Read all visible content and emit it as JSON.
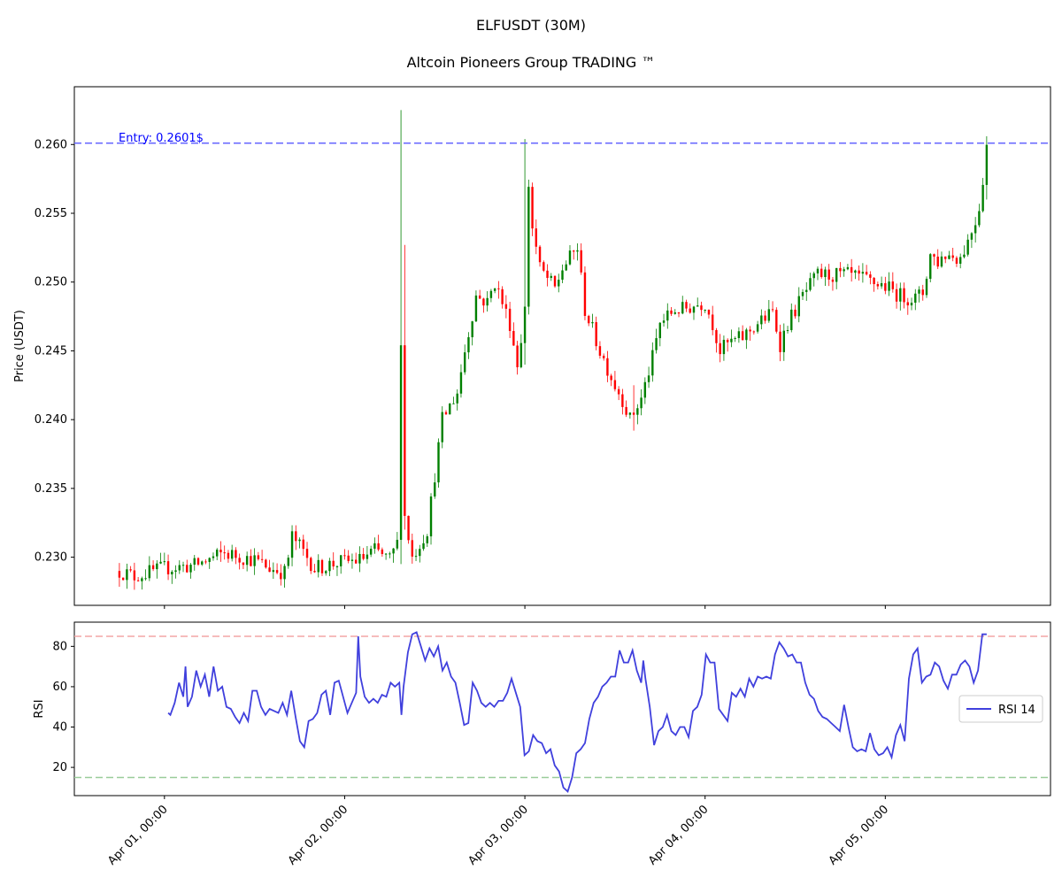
{
  "chart_data": {
    "type": "candlestick",
    "title": "ELFUSDT (30M)",
    "subtitle": "Altcoin Pioneers Group TRADING ™",
    "colors": {
      "up": "#008000",
      "down": "#ff0000",
      "entry": "#6666ff",
      "rsi": "#4040dd",
      "overbought": "#f4a6a6",
      "oversold": "#99cc99",
      "entry_text": "#0000ff"
    },
    "x_axis": {
      "ticks": [
        "Apr 01, 00:00",
        "Apr 02, 00:00",
        "Apr 03, 00:00",
        "Apr 04, 00:00",
        "Apr 05, 00:00"
      ],
      "tick_hours": [
        0,
        24,
        48,
        72,
        96
      ],
      "range_hours": [
        -12,
        118
      ]
    },
    "price_panel": {
      "ylabel": "Price (USDT)",
      "ylim": [
        0.2265,
        0.2642
      ],
      "yticks": [
        0.23,
        0.235,
        0.24,
        0.245,
        0.25,
        0.255,
        0.26
      ],
      "ytick_labels": [
        "0.230",
        "0.235",
        "0.240",
        "0.245",
        "0.250",
        "0.255",
        "0.260"
      ],
      "entry": {
        "value": 0.2601,
        "label": "Entry: 0.2601$"
      },
      "keyframes": [
        [
          -6,
          0.229
        ],
        [
          -4,
          0.2286
        ],
        [
          0,
          0.2292
        ],
        [
          4,
          0.2294
        ],
        [
          8,
          0.2303
        ],
        [
          12,
          0.2298
        ],
        [
          14,
          0.2292
        ],
        [
          16,
          0.2289
        ],
        [
          16.5,
          0.23
        ],
        [
          17,
          0.2315
        ],
        [
          18,
          0.2308
        ],
        [
          20,
          0.2292
        ],
        [
          23,
          0.2296
        ],
        [
          26,
          0.2298
        ],
        [
          28,
          0.2305
        ],
        [
          30,
          0.2298
        ],
        [
          31,
          0.231
        ],
        [
          31.5,
          0.246
        ],
        [
          32,
          0.233
        ],
        [
          33,
          0.23
        ],
        [
          35,
          0.232
        ],
        [
          37,
          0.24
        ],
        [
          39,
          0.242
        ],
        [
          40,
          0.245
        ],
        [
          41.5,
          0.249
        ],
        [
          43,
          0.2485
        ],
        [
          44,
          0.25
        ],
        [
          46,
          0.247
        ],
        [
          47,
          0.244
        ],
        [
          48,
          0.248
        ],
        [
          48.2,
          0.259
        ],
        [
          49,
          0.254
        ],
        [
          50,
          0.251
        ],
        [
          52,
          0.2495
        ],
        [
          53,
          0.251
        ],
        [
          55,
          0.2525
        ],
        [
          56,
          0.248
        ],
        [
          58,
          0.245
        ],
        [
          60,
          0.2425
        ],
        [
          61,
          0.2415
        ],
        [
          62,
          0.24
        ],
        [
          63.5,
          0.2415
        ],
        [
          65,
          0.2445
        ],
        [
          66,
          0.247
        ],
        [
          68,
          0.248
        ],
        [
          69,
          0.248
        ],
        [
          71,
          0.2484
        ],
        [
          72,
          0.2485
        ],
        [
          73,
          0.247
        ],
        [
          74,
          0.245
        ],
        [
          75,
          0.2455
        ],
        [
          77,
          0.246
        ],
        [
          79,
          0.247
        ],
        [
          81,
          0.2478
        ],
        [
          82,
          0.2455
        ],
        [
          83,
          0.247
        ],
        [
          85,
          0.249
        ],
        [
          87,
          0.2505
        ],
        [
          89,
          0.2505
        ],
        [
          91,
          0.2505
        ],
        [
          93,
          0.2502
        ],
        [
          96,
          0.2497
        ],
        [
          98,
          0.249
        ],
        [
          100,
          0.2488
        ],
        [
          101,
          0.2492
        ],
        [
          102,
          0.252
        ],
        [
          103,
          0.2515
        ],
        [
          104,
          0.252
        ],
        [
          106,
          0.2518
        ],
        [
          107,
          0.253
        ],
        [
          108,
          0.2545
        ],
        [
          108.5,
          0.2555
        ],
        [
          109,
          0.2575
        ],
        [
          109.5,
          0.26
        ]
      ],
      "spikes": [
        {
          "hour": 31.5,
          "high": 0.2625,
          "low": 0.2295
        },
        {
          "hour": 32.0,
          "high": 0.2527,
          "low": 0.232
        },
        {
          "hour": 48.0,
          "high": 0.2604,
          "low": 0.244
        },
        {
          "hour": 62.5,
          "high": 0.2425,
          "low": 0.2392
        },
        {
          "hour": 109.5,
          "high": 0.2606,
          "low": 0.256
        }
      ]
    },
    "rsi_panel": {
      "ylabel": "RSI",
      "legend": "RSI 14",
      "legend_position": "right",
      "ylim": [
        6,
        92
      ],
      "yticks": [
        20,
        40,
        60,
        80
      ],
      "overbought": 85,
      "oversold": 15,
      "keyframes": [
        [
          0.5,
          47
        ],
        [
          1,
          46
        ],
        [
          2,
          52
        ],
        [
          3,
          62
        ],
        [
          4,
          55
        ],
        [
          4.5,
          70
        ],
        [
          5,
          50
        ],
        [
          6,
          55
        ],
        [
          7,
          68
        ],
        [
          8,
          60
        ],
        [
          9,
          66
        ],
        [
          10,
          55
        ],
        [
          11,
          70
        ],
        [
          12,
          58
        ],
        [
          13,
          60
        ],
        [
          14,
          50
        ],
        [
          15,
          49
        ],
        [
          16,
          45
        ],
        [
          17,
          42
        ],
        [
          18,
          47
        ],
        [
          19,
          43
        ],
        [
          20,
          58
        ],
        [
          21,
          58
        ],
        [
          22,
          50
        ],
        [
          23,
          46
        ],
        [
          24,
          49
        ],
        [
          26,
          47
        ],
        [
          27,
          52
        ],
        [
          28,
          46
        ],
        [
          29,
          58
        ],
        [
          30,
          45
        ],
        [
          31,
          33
        ],
        [
          32,
          30
        ],
        [
          33,
          43
        ],
        [
          34,
          44
        ],
        [
          35,
          47
        ],
        [
          36,
          56
        ],
        [
          37,
          58
        ],
        [
          38,
          46
        ],
        [
          39,
          62
        ],
        [
          40,
          63
        ],
        [
          41,
          55
        ],
        [
          42,
          47
        ],
        [
          43,
          52
        ],
        [
          44,
          57
        ],
        [
          44.5,
          85
        ],
        [
          45,
          65
        ],
        [
          46,
          55
        ],
        [
          47,
          52
        ],
        [
          48,
          54
        ],
        [
          49,
          52
        ],
        [
          50,
          56
        ],
        [
          51,
          55
        ],
        [
          52,
          62
        ],
        [
          53,
          60
        ],
        [
          54,
          62
        ],
        [
          54.5,
          46
        ],
        [
          55,
          60
        ],
        [
          56,
          77
        ],
        [
          57,
          86
        ],
        [
          58,
          87
        ],
        [
          59,
          80
        ],
        [
          60,
          73
        ],
        [
          61,
          79
        ],
        [
          62,
          75
        ],
        [
          63,
          80
        ],
        [
          64,
          68
        ],
        [
          65,
          72
        ],
        [
          66,
          65
        ],
        [
          67,
          62
        ],
        [
          68,
          52
        ],
        [
          69,
          41
        ],
        [
          70,
          42
        ],
        [
          71,
          62
        ],
        [
          72,
          58
        ],
        [
          73,
          52
        ],
        [
          74,
          50
        ],
        [
          75,
          52
        ],
        [
          76,
          50
        ],
        [
          77,
          53
        ],
        [
          78,
          53
        ],
        [
          79,
          57
        ],
        [
          80,
          64
        ],
        [
          81,
          57
        ],
        [
          82,
          50
        ],
        [
          83,
          26
        ],
        [
          84,
          28
        ],
        [
          85,
          36
        ],
        [
          86,
          33
        ],
        [
          87,
          32
        ],
        [
          88,
          27
        ],
        [
          89,
          29
        ],
        [
          90,
          21
        ],
        [
          91,
          18
        ],
        [
          92,
          10
        ],
        [
          93,
          8
        ],
        [
          94,
          15
        ],
        [
          95,
          27
        ],
        [
          96,
          29
        ],
        [
          97,
          32
        ],
        [
          98,
          44
        ],
        [
          99,
          52
        ],
        [
          100,
          55
        ],
        [
          101,
          60
        ],
        [
          102,
          62
        ],
        [
          103,
          65
        ],
        [
          104,
          65
        ],
        [
          105,
          78
        ],
        [
          106,
          72
        ],
        [
          107,
          72
        ],
        [
          108,
          78
        ],
        [
          109,
          68
        ],
        [
          110,
          62
        ],
        [
          110.5,
          73
        ],
        [
          111,
          64
        ],
        [
          112,
          50
        ],
        [
          113,
          31
        ],
        [
          114,
          38
        ],
        [
          115,
          40
        ],
        [
          116,
          46
        ],
        [
          117,
          38
        ],
        [
          118,
          36
        ],
        [
          119,
          40
        ],
        [
          120,
          40
        ],
        [
          121,
          35
        ],
        [
          122,
          48
        ],
        [
          123,
          50
        ],
        [
          124,
          56
        ],
        [
          125,
          76
        ],
        [
          126,
          72
        ],
        [
          127,
          72
        ],
        [
          128,
          49
        ],
        [
          129,
          46
        ],
        [
          130,
          43
        ],
        [
          131,
          57
        ],
        [
          132,
          55
        ],
        [
          133,
          59
        ],
        [
          134,
          55
        ],
        [
          135,
          64
        ],
        [
          136,
          60
        ],
        [
          137,
          65
        ],
        [
          138,
          64
        ],
        [
          139,
          65
        ],
        [
          140,
          64
        ],
        [
          141,
          76
        ],
        [
          142,
          82
        ],
        [
          143,
          79
        ],
        [
          144,
          75
        ],
        [
          145,
          76
        ],
        [
          146,
          72
        ],
        [
          147,
          72
        ],
        [
          148,
          62
        ],
        [
          149,
          56
        ],
        [
          150,
          54
        ],
        [
          151,
          48
        ],
        [
          152,
          45
        ],
        [
          153,
          44
        ],
        [
          154,
          42
        ],
        [
          155,
          40
        ],
        [
          156,
          38
        ],
        [
          157,
          51
        ],
        [
          158,
          40
        ],
        [
          159,
          30
        ],
        [
          160,
          28
        ],
        [
          161,
          29
        ],
        [
          162,
          28
        ],
        [
          163,
          37
        ],
        [
          164,
          29
        ],
        [
          165,
          26
        ],
        [
          166,
          27
        ],
        [
          167,
          30
        ],
        [
          168,
          25
        ],
        [
          169,
          36
        ],
        [
          170,
          41
        ],
        [
          171,
          33
        ],
        [
          172,
          64
        ],
        [
          173,
          76
        ],
        [
          174,
          79
        ],
        [
          175,
          62
        ],
        [
          176,
          65
        ],
        [
          177,
          66
        ],
        [
          178,
          72
        ],
        [
          179,
          70
        ],
        [
          180,
          63
        ],
        [
          181,
          59
        ],
        [
          182,
          66
        ],
        [
          183,
          66
        ],
        [
          184,
          71
        ],
        [
          185,
          73
        ],
        [
          186,
          70
        ],
        [
          187,
          62
        ],
        [
          188,
          68
        ],
        [
          189,
          86
        ],
        [
          190,
          86
        ]
      ]
    }
  }
}
